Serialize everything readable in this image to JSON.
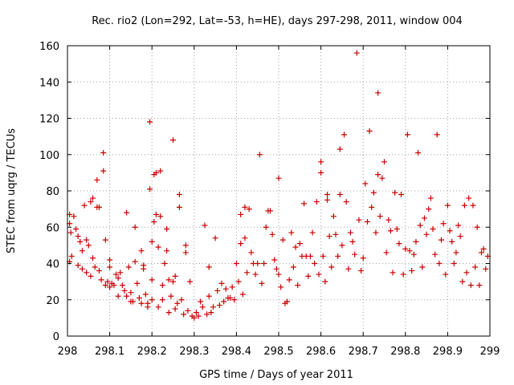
{
  "chart_data": {
    "type": "scatter",
    "title": "Rec. rio2 (Lon=292, Lat=-53, h=HE), days 297-298, 2011, window 004",
    "xlabel": "GPS time / Days of year 2011",
    "ylabel": "STEC from uqrg / TECUs",
    "xlim": [
      298,
      299
    ],
    "ylim": [
      0,
      160
    ],
    "xticks": [
      "298",
      "298.1",
      "298.2",
      "298.3",
      "298.4",
      "298.5",
      "298.6",
      "298.7",
      "298.8",
      "298.9",
      "299"
    ],
    "yticks": [
      "0",
      "20",
      "40",
      "60",
      "80",
      "100",
      "120",
      "140",
      "160"
    ],
    "grid": true,
    "marker": "plus",
    "color": "#cc0000",
    "points": [
      [
        298.005,
        67
      ],
      [
        298.005,
        62
      ],
      [
        298.008,
        57
      ],
      [
        298.005,
        41
      ],
      [
        298.01,
        44
      ],
      [
        298.015,
        66
      ],
      [
        298.02,
        59
      ],
      [
        298.025,
        39
      ],
      [
        298.025,
        55
      ],
      [
        298.03,
        52
      ],
      [
        298.035,
        37
      ],
      [
        298.035,
        47
      ],
      [
        298.04,
        72
      ],
      [
        298.045,
        35
      ],
      [
        298.045,
        53
      ],
      [
        298.05,
        50
      ],
      [
        298.055,
        74
      ],
      [
        298.055,
        33
      ],
      [
        298.06,
        76
      ],
      [
        298.06,
        43
      ],
      [
        298.065,
        38
      ],
      [
        298.07,
        86
      ],
      [
        298.07,
        71
      ],
      [
        298.075,
        36
      ],
      [
        298.075,
        71
      ],
      [
        298.08,
        31
      ],
      [
        298.085,
        91
      ],
      [
        298.085,
        101
      ],
      [
        298.09,
        53
      ],
      [
        298.09,
        28
      ],
      [
        298.095,
        30
      ],
      [
        298.1,
        42
      ],
      [
        298.1,
        38
      ],
      [
        298.1,
        27
      ],
      [
        298.105,
        29
      ],
      [
        298.11,
        28
      ],
      [
        298.115,
        34
      ],
      [
        298.12,
        32
      ],
      [
        298.12,
        22
      ],
      [
        298.125,
        35
      ],
      [
        298.13,
        28
      ],
      [
        298.135,
        25
      ],
      [
        298.14,
        68
      ],
      [
        298.14,
        22
      ],
      [
        298.145,
        38
      ],
      [
        298.15,
        24
      ],
      [
        298.15,
        19
      ],
      [
        298.155,
        19
      ],
      [
        298.16,
        41
      ],
      [
        298.16,
        60
      ],
      [
        298.165,
        29
      ],
      [
        298.17,
        21
      ],
      [
        298.175,
        47
      ],
      [
        298.175,
        18
      ],
      [
        298.18,
        39
      ],
      [
        298.18,
        37
      ],
      [
        298.185,
        23
      ],
      [
        298.19,
        16
      ],
      [
        298.19,
        18
      ],
      [
        298.195,
        118
      ],
      [
        298.195,
        81
      ],
      [
        298.2,
        52
      ],
      [
        298.2,
        31
      ],
      [
        298.2,
        20
      ],
      [
        298.205,
        89
      ],
      [
        298.205,
        63
      ],
      [
        298.21,
        67
      ],
      [
        298.21,
        90
      ],
      [
        298.215,
        49
      ],
      [
        298.215,
        16
      ],
      [
        298.22,
        66
      ],
      [
        298.22,
        91
      ],
      [
        298.225,
        20
      ],
      [
        298.225,
        28
      ],
      [
        298.23,
        40
      ],
      [
        298.235,
        59
      ],
      [
        298.235,
        47
      ],
      [
        298.24,
        31
      ],
      [
        298.24,
        13
      ],
      [
        298.245,
        22
      ],
      [
        298.25,
        108
      ],
      [
        298.25,
        30
      ],
      [
        298.255,
        15
      ],
      [
        298.255,
        33
      ],
      [
        298.26,
        18
      ],
      [
        298.265,
        78
      ],
      [
        298.265,
        71
      ],
      [
        298.27,
        20
      ],
      [
        298.275,
        12
      ],
      [
        298.28,
        46
      ],
      [
        298.28,
        50
      ],
      [
        298.285,
        14
      ],
      [
        298.29,
        30
      ],
      [
        298.295,
        11
      ],
      [
        298.3,
        10
      ],
      [
        298.305,
        13
      ],
      [
        298.31,
        11
      ],
      [
        298.315,
        19
      ],
      [
        298.32,
        16
      ],
      [
        298.325,
        61
      ],
      [
        298.33,
        12
      ],
      [
        298.335,
        38
      ],
      [
        298.335,
        22
      ],
      [
        298.34,
        13
      ],
      [
        298.345,
        16
      ],
      [
        298.35,
        54
      ],
      [
        298.355,
        25
      ],
      [
        298.36,
        17
      ],
      [
        298.365,
        29
      ],
      [
        298.37,
        19
      ],
      [
        298.375,
        26
      ],
      [
        298.38,
        21
      ],
      [
        298.385,
        21
      ],
      [
        298.39,
        27
      ],
      [
        298.395,
        20
      ],
      [
        298.4,
        40
      ],
      [
        298.405,
        30
      ],
      [
        298.41,
        67
      ],
      [
        298.41,
        51
      ],
      [
        298.415,
        23
      ],
      [
        298.42,
        71
      ],
      [
        298.42,
        54
      ],
      [
        298.425,
        35
      ],
      [
        298.43,
        70
      ],
      [
        298.435,
        46
      ],
      [
        298.44,
        40
      ],
      [
        298.445,
        34
      ],
      [
        298.45,
        40
      ],
      [
        298.455,
        100
      ],
      [
        298.46,
        29
      ],
      [
        298.465,
        40
      ],
      [
        298.47,
        60
      ],
      [
        298.475,
        69
      ],
      [
        298.48,
        69
      ],
      [
        298.485,
        56
      ],
      [
        298.49,
        42
      ],
      [
        298.495,
        37
      ],
      [
        298.5,
        87
      ],
      [
        298.5,
        34
      ],
      [
        298.505,
        27
      ],
      [
        298.51,
        53
      ],
      [
        298.515,
        18
      ],
      [
        298.52,
        19
      ],
      [
        298.525,
        31
      ],
      [
        298.53,
        57
      ],
      [
        298.535,
        38
      ],
      [
        298.54,
        49
      ],
      [
        298.545,
        28
      ],
      [
        298.55,
        51
      ],
      [
        298.555,
        44
      ],
      [
        298.56,
        73
      ],
      [
        298.565,
        44
      ],
      [
        298.57,
        33
      ],
      [
        298.575,
        44
      ],
      [
        298.58,
        57
      ],
      [
        298.585,
        40
      ],
      [
        298.59,
        74
      ],
      [
        298.595,
        34
      ],
      [
        298.6,
        96
      ],
      [
        298.6,
        90
      ],
      [
        298.605,
        44
      ],
      [
        298.61,
        30
      ],
      [
        298.615,
        78
      ],
      [
        298.615,
        75
      ],
      [
        298.62,
        55
      ],
      [
        298.625,
        38
      ],
      [
        298.63,
        66
      ],
      [
        298.635,
        56
      ],
      [
        298.64,
        44
      ],
      [
        298.645,
        103
      ],
      [
        298.645,
        78
      ],
      [
        298.65,
        50
      ],
      [
        298.655,
        111
      ],
      [
        298.66,
        74
      ],
      [
        298.665,
        37
      ],
      [
        298.67,
        57
      ],
      [
        298.675,
        52
      ],
      [
        298.68,
        45
      ],
      [
        298.685,
        156
      ],
      [
        298.69,
        64
      ],
      [
        298.695,
        36
      ],
      [
        298.7,
        43
      ],
      [
        298.705,
        84
      ],
      [
        298.71,
        63
      ],
      [
        298.715,
        113
      ],
      [
        298.72,
        71
      ],
      [
        298.725,
        79
      ],
      [
        298.73,
        57
      ],
      [
        298.735,
        134
      ],
      [
        298.735,
        89
      ],
      [
        298.74,
        66
      ],
      [
        298.745,
        87
      ],
      [
        298.75,
        96
      ],
      [
        298.755,
        46
      ],
      [
        298.76,
        64
      ],
      [
        298.765,
        58
      ],
      [
        298.77,
        35
      ],
      [
        298.775,
        79
      ],
      [
        298.78,
        59
      ],
      [
        298.785,
        51
      ],
      [
        298.79,
        78
      ],
      [
        298.795,
        34
      ],
      [
        298.8,
        48
      ],
      [
        298.805,
        111
      ],
      [
        298.81,
        47
      ],
      [
        298.815,
        36
      ],
      [
        298.82,
        45
      ],
      [
        298.825,
        52
      ],
      [
        298.83,
        101
      ],
      [
        298.835,
        61
      ],
      [
        298.84,
        38
      ],
      [
        298.845,
        65
      ],
      [
        298.85,
        56
      ],
      [
        298.855,
        70
      ],
      [
        298.86,
        76
      ],
      [
        298.865,
        59
      ],
      [
        298.87,
        45
      ],
      [
        298.875,
        111
      ],
      [
        298.88,
        40
      ],
      [
        298.885,
        53
      ],
      [
        298.89,
        62
      ],
      [
        298.895,
        34
      ],
      [
        298.9,
        72
      ],
      [
        298.905,
        58
      ],
      [
        298.91,
        52
      ],
      [
        298.915,
        40
      ],
      [
        298.92,
        46
      ],
      [
        298.925,
        61
      ],
      [
        298.93,
        55
      ],
      [
        298.935,
        30
      ],
      [
        298.94,
        72
      ],
      [
        298.945,
        35
      ],
      [
        298.95,
        76
      ],
      [
        298.955,
        28
      ],
      [
        298.96,
        72
      ],
      [
        298.965,
        38
      ],
      [
        298.97,
        60
      ],
      [
        298.975,
        28
      ],
      [
        298.98,
        46
      ],
      [
        298.985,
        48
      ],
      [
        298.99,
        37
      ],
      [
        298.995,
        44
      ]
    ]
  }
}
